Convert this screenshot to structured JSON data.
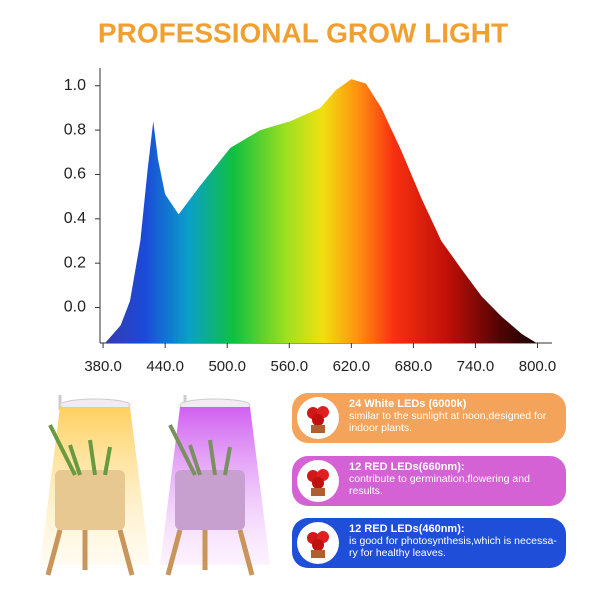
{
  "chart_data": {
    "type": "area",
    "title": "PROFESSIONAL GROW LIGHT",
    "x": [
      382,
      397,
      406,
      416,
      423,
      428.5,
      433,
      440,
      453,
      474,
      503,
      532,
      561,
      590,
      605,
      620,
      634,
      649,
      668,
      688,
      707,
      727,
      746,
      765,
      785,
      799
    ],
    "values": [
      -0.16,
      -0.08,
      0.03,
      0.3,
      0.62,
      0.84,
      0.67,
      0.51,
      0.42,
      0.55,
      0.72,
      0.8,
      0.84,
      0.9,
      0.98,
      1.03,
      1.01,
      0.9,
      0.71,
      0.49,
      0.3,
      0.17,
      0.05,
      -0.04,
      -0.12,
      -0.16
    ],
    "xlim": [
      377,
      814
    ],
    "ylim": [
      -0.16,
      1.08
    ],
    "xticks": [
      {
        "value": 380,
        "label": "380.0"
      },
      {
        "value": 440,
        "label": "440.0"
      },
      {
        "value": 500,
        "label": "500.0"
      },
      {
        "value": 560,
        "label": "560.0"
      },
      {
        "value": 620,
        "label": "620.0"
      },
      {
        "value": 680,
        "label": "680.0"
      },
      {
        "value": 740,
        "label": "740.0"
      },
      {
        "value": 800,
        "label": "800.0"
      }
    ],
    "yticks": [
      {
        "value": 0,
        "label": "0.0"
      },
      0.2,
      0.4,
      0.6,
      0.8,
      {
        "value": 1,
        "label": "1.0"
      }
    ]
  },
  "panels": [
    {
      "title": "24 White LEDs  (6000k)",
      "text": "similar to the sunlight at noon,designed for indoor plants."
    },
    {
      "title": "12 RED LEDs(660nm):",
      "text": "contribute to germination,flowering and results."
    },
    {
      "title": "12 RED LEDs(460nm):",
      "text": "is good for photosynthesis,which is necessa-ry for healthy leaves."
    }
  ]
}
